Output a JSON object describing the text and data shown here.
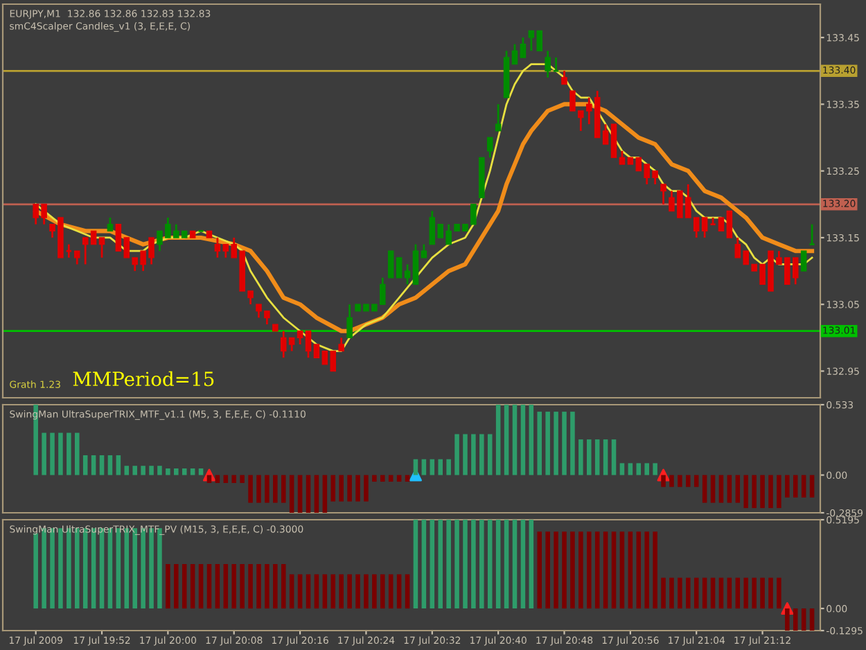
{
  "chart_data": [
    {
      "type": "candlestick",
      "title": "EURJPY,M1  132.86 132.86 132.83 132.83",
      "subtitle": "smC4Scalper Candles_v1 (3, E,E,E, C)",
      "annotations": [
        "Grath 1.23",
        "MMPeriod=15"
      ],
      "x": [
        "2009-07-17T19:44",
        "2009-07-17T19:45",
        "2009-07-17T19:46",
        "2009-07-17T19:47",
        "2009-07-17T19:48",
        "2009-07-17T19:49",
        "2009-07-17T19:50",
        "2009-07-17T19:51",
        "2009-07-17T19:52",
        "2009-07-17T19:53",
        "2009-07-17T19:54",
        "2009-07-17T19:55",
        "2009-07-17T19:56",
        "2009-07-17T19:57",
        "2009-07-17T19:58",
        "2009-07-17T19:59",
        "2009-07-17T20:00",
        "2009-07-17T20:01",
        "2009-07-17T20:02",
        "2009-07-17T20:03",
        "2009-07-17T20:04",
        "2009-07-17T20:05",
        "2009-07-17T20:06",
        "2009-07-17T20:07",
        "2009-07-17T20:08",
        "2009-07-17T20:09",
        "2009-07-17T20:10",
        "2009-07-17T20:11",
        "2009-07-17T20:12",
        "2009-07-17T20:13",
        "2009-07-17T20:14",
        "2009-07-17T20:15",
        "2009-07-17T20:16",
        "2009-07-17T20:17",
        "2009-07-17T20:18",
        "2009-07-17T20:19",
        "2009-07-17T20:20",
        "2009-07-17T20:21",
        "2009-07-17T20:22",
        "2009-07-17T20:23",
        "2009-07-17T20:24",
        "2009-07-17T20:25",
        "2009-07-17T20:26",
        "2009-07-17T20:27",
        "2009-07-17T20:28",
        "2009-07-17T20:29",
        "2009-07-17T20:30",
        "2009-07-17T20:31",
        "2009-07-17T20:32",
        "2009-07-17T20:33",
        "2009-07-17T20:34",
        "2009-07-17T20:35",
        "2009-07-17T20:36",
        "2009-07-17T20:37",
        "2009-07-17T20:38",
        "2009-07-17T20:39",
        "2009-07-17T20:40",
        "2009-07-17T20:41",
        "2009-07-17T20:42",
        "2009-07-17T20:43",
        "2009-07-17T20:44",
        "2009-07-17T20:45",
        "2009-07-17T20:46",
        "2009-07-17T20:47",
        "2009-07-17T20:48",
        "2009-07-17T20:49",
        "2009-07-17T20:50",
        "2009-07-17T20:51",
        "2009-07-17T20:52",
        "2009-07-17T20:53",
        "2009-07-17T20:54",
        "2009-07-17T20:55",
        "2009-07-17T20:56",
        "2009-07-17T20:57",
        "2009-07-17T20:58",
        "2009-07-17T20:59",
        "2009-07-17T21:00",
        "2009-07-17T21:01",
        "2009-07-17T21:02",
        "2009-07-17T21:03",
        "2009-07-17T21:04",
        "2009-07-17T21:05",
        "2009-07-17T21:06",
        "2009-07-17T21:07",
        "2009-07-17T21:08",
        "2009-07-17T21:09",
        "2009-07-17T21:10",
        "2009-07-17T21:11",
        "2009-07-17T21:12",
        "2009-07-17T21:13",
        "2009-07-17T21:14",
        "2009-07-17T21:15",
        "2009-07-17T21:16",
        "2009-07-17T21:17",
        "2009-07-17T21:18"
      ],
      "ohlc": [
        [
          133.2,
          133.2,
          133.17,
          133.18
        ],
        [
          133.2,
          133.2,
          133.17,
          133.18
        ],
        [
          133.17,
          133.17,
          133.15,
          133.16
        ],
        [
          133.18,
          133.18,
          133.12,
          133.12
        ],
        [
          133.13,
          133.14,
          133.12,
          133.13
        ],
        [
          133.13,
          133.13,
          133.11,
          133.12
        ],
        [
          133.15,
          133.15,
          133.11,
          133.14
        ],
        [
          133.16,
          133.16,
          133.14,
          133.14
        ],
        [
          133.15,
          133.15,
          133.12,
          133.14
        ],
        [
          133.16,
          133.18,
          133.16,
          133.17
        ],
        [
          133.17,
          133.17,
          133.13,
          133.13
        ],
        [
          133.15,
          133.15,
          133.12,
          133.12
        ],
        [
          133.12,
          133.12,
          133.1,
          133.11
        ],
        [
          133.13,
          133.13,
          133.1,
          133.11
        ],
        [
          133.15,
          133.15,
          133.11,
          133.12
        ],
        [
          133.14,
          133.16,
          133.13,
          133.16
        ],
        [
          133.15,
          133.18,
          133.15,
          133.17
        ],
        [
          133.15,
          133.17,
          133.15,
          133.16
        ],
        [
          133.15,
          133.16,
          133.15,
          133.16
        ],
        [
          133.16,
          133.16,
          133.15,
          133.15
        ],
        [
          133.16,
          133.16,
          133.16,
          133.16
        ],
        [
          133.16,
          133.16,
          133.15,
          133.15
        ],
        [
          133.14,
          133.15,
          133.12,
          133.13
        ],
        [
          133.14,
          133.14,
          133.12,
          133.13
        ],
        [
          133.14,
          133.15,
          133.12,
          133.12
        ],
        [
          133.13,
          133.13,
          133.07,
          133.07
        ],
        [
          133.07,
          133.07,
          133.05,
          133.06
        ],
        [
          133.05,
          133.05,
          133.03,
          133.04
        ],
        [
          133.04,
          133.04,
          133.02,
          133.03
        ],
        [
          133.02,
          133.02,
          133.01,
          133.01
        ],
        [
          133.0,
          133.01,
          132.97,
          132.98
        ],
        [
          133.0,
          133.0,
          132.98,
          132.99
        ],
        [
          133.01,
          133.01,
          132.99,
          133.0
        ],
        [
          133.01,
          133.01,
          132.97,
          132.98
        ],
        [
          132.99,
          132.99,
          132.97,
          132.97
        ],
        [
          132.98,
          132.98,
          132.96,
          132.96
        ],
        [
          132.98,
          132.98,
          132.95,
          132.95
        ],
        [
          132.99,
          133.0,
          132.98,
          132.98
        ],
        [
          133.0,
          133.05,
          133.0,
          133.03
        ],
        [
          133.04,
          133.05,
          133.04,
          133.05
        ],
        [
          133.04,
          133.05,
          133.04,
          133.05
        ],
        [
          133.04,
          133.05,
          133.04,
          133.05
        ],
        [
          133.05,
          133.09,
          133.05,
          133.08
        ],
        [
          133.09,
          133.13,
          133.09,
          133.13
        ],
        [
          133.09,
          133.12,
          133.09,
          133.12
        ],
        [
          133.09,
          133.11,
          133.08,
          133.1
        ],
        [
          133.08,
          133.14,
          133.08,
          133.13
        ],
        [
          133.12,
          133.14,
          133.12,
          133.13
        ],
        [
          133.14,
          133.19,
          133.14,
          133.18
        ],
        [
          133.15,
          133.17,
          133.15,
          133.17
        ],
        [
          133.14,
          133.17,
          133.14,
          133.16
        ],
        [
          133.16,
          133.17,
          133.16,
          133.17
        ],
        [
          133.16,
          133.17,
          133.16,
          133.17
        ],
        [
          133.17,
          133.2,
          133.17,
          133.2
        ],
        [
          133.21,
          133.27,
          133.21,
          133.27
        ],
        [
          133.28,
          133.3,
          133.27,
          133.3
        ],
        [
          133.31,
          133.35,
          133.31,
          133.32
        ],
        [
          133.36,
          133.43,
          133.36,
          133.42
        ],
        [
          133.41,
          133.44,
          133.41,
          133.43
        ],
        [
          133.42,
          133.45,
          133.42,
          133.44
        ],
        [
          133.45,
          133.46,
          133.43,
          133.46
        ],
        [
          133.43,
          133.46,
          133.43,
          133.46
        ],
        [
          133.4,
          133.43,
          133.39,
          133.42
        ],
        [
          133.4,
          133.42,
          133.4,
          133.4
        ],
        [
          133.39,
          133.4,
          133.38,
          133.38
        ],
        [
          133.37,
          133.37,
          133.34,
          133.34
        ],
        [
          133.34,
          133.34,
          133.31,
          133.33
        ],
        [
          133.35,
          133.36,
          133.32,
          133.34
        ],
        [
          133.36,
          133.37,
          133.3,
          133.3
        ],
        [
          133.31,
          133.32,
          133.29,
          133.29
        ],
        [
          133.32,
          133.32,
          133.27,
          133.27
        ],
        [
          133.27,
          133.28,
          133.26,
          133.26
        ],
        [
          133.27,
          133.27,
          133.26,
          133.26
        ],
        [
          133.27,
          133.27,
          133.25,
          133.25
        ],
        [
          133.26,
          133.26,
          133.23,
          133.24
        ],
        [
          133.25,
          133.25,
          133.23,
          133.24
        ],
        [
          133.23,
          133.23,
          133.2,
          133.22
        ],
        [
          133.21,
          133.22,
          133.19,
          133.19
        ],
        [
          133.22,
          133.22,
          133.18,
          133.18
        ],
        [
          133.21,
          133.23,
          133.18,
          133.18
        ],
        [
          133.18,
          133.18,
          133.15,
          133.16
        ],
        [
          133.18,
          133.18,
          133.15,
          133.16
        ],
        [
          133.17,
          133.18,
          133.17,
          133.17
        ],
        [
          133.18,
          133.18,
          133.16,
          133.16
        ],
        [
          133.19,
          133.19,
          133.15,
          133.15
        ],
        [
          133.14,
          133.15,
          133.12,
          133.12
        ],
        [
          133.13,
          133.13,
          133.11,
          133.11
        ],
        [
          133.11,
          133.11,
          133.1,
          133.1
        ],
        [
          133.11,
          133.11,
          133.08,
          133.08
        ],
        [
          133.13,
          133.13,
          133.07,
          133.07
        ],
        [
          133.12,
          133.13,
          133.11,
          133.11
        ],
        [
          133.12,
          133.12,
          133.08,
          133.08
        ],
        [
          133.12,
          133.12,
          133.08,
          133.09
        ],
        [
          133.1,
          133.13,
          133.1,
          133.13
        ],
        [
          133.14,
          133.17,
          133.14,
          133.14
        ]
      ],
      "colors": [
        "#e00000",
        "#e00000",
        "#e00000",
        "#e00000",
        "#e00000",
        "#e00000",
        "#e00000",
        "#e00000",
        "#e00000",
        "#008c00",
        "#e00000",
        "#e00000",
        "#e00000",
        "#e00000",
        "#e00000",
        "#008c00",
        "#008c00",
        "#008c00",
        "#008c00",
        "#e00000",
        "#008c00",
        "#e00000",
        "#e00000",
        "#e00000",
        "#e00000",
        "#e00000",
        "#e00000",
        "#e00000",
        "#e00000",
        "#e00000",
        "#e00000",
        "#e00000",
        "#e00000",
        "#e00000",
        "#e00000",
        "#e00000",
        "#e00000",
        "#e00000",
        "#008c00",
        "#008c00",
        "#008c00",
        "#008c00",
        "#008c00",
        "#008c00",
        "#008c00",
        "#008c00",
        "#008c00",
        "#008c00",
        "#008c00",
        "#008c00",
        "#008c00",
        "#008c00",
        "#008c00",
        "#008c00",
        "#008c00",
        "#008c00",
        "#008c00",
        "#008c00",
        "#008c00",
        "#008c00",
        "#008c00",
        "#008c00",
        "#008c00",
        "#008c00",
        "#e00000",
        "#e00000",
        "#e00000",
        "#e00000",
        "#e00000",
        "#e00000",
        "#e00000",
        "#e00000",
        "#e00000",
        "#e00000",
        "#e00000",
        "#e00000",
        "#e00000",
        "#e00000",
        "#e00000",
        "#e00000",
        "#e00000",
        "#e00000",
        "#e00000",
        "#e00000",
        "#e00000",
        "#e00000",
        "#e00000",
        "#e00000",
        "#e00000",
        "#e00000",
        "#e00000",
        "#e00000",
        "#e00000",
        "#008c00",
        "#008c00"
      ],
      "series": [
        {
          "type": "line",
          "color": "#f08c1a",
          "x": [
            "2009-07-17T19:44",
            "2009-07-17T19:47",
            "2009-07-17T19:50",
            "2009-07-17T19:53",
            "2009-07-17T19:57",
            "2009-07-17T20:00",
            "2009-07-17T20:04",
            "2009-07-17T20:08",
            "2009-07-17T20:10",
            "2009-07-17T20:12",
            "2009-07-17T20:14",
            "2009-07-17T20:16",
            "2009-07-17T20:18",
            "2009-07-17T20:21",
            "2009-07-17T20:22",
            "2009-07-17T20:24",
            "2009-07-17T20:26",
            "2009-07-17T20:28",
            "2009-07-17T20:30",
            "2009-07-17T20:32",
            "2009-07-17T20:34",
            "2009-07-17T20:36",
            "2009-07-17T20:37",
            "2009-07-17T20:38",
            "2009-07-17T20:40",
            "2009-07-17T20:41",
            "2009-07-17T20:42",
            "2009-07-17T20:43",
            "2009-07-17T20:44",
            "2009-07-17T20:46",
            "2009-07-17T20:48",
            "2009-07-17T20:49",
            "2009-07-17T20:51",
            "2009-07-17T20:53",
            "2009-07-17T20:55",
            "2009-07-17T20:57",
            "2009-07-17T20:59",
            "2009-07-17T21:01",
            "2009-07-17T21:03",
            "2009-07-17T21:05",
            "2009-07-17T21:07",
            "2009-07-17T21:08",
            "2009-07-17T21:10",
            "2009-07-17T21:12",
            "2009-07-17T21:14",
            "2009-07-17T21:16",
            "2009-07-17T21:18"
          ],
          "values": [
            133.19,
            133.17,
            133.16,
            133.16,
            133.14,
            133.15,
            133.15,
            133.14,
            133.13,
            133.1,
            133.06,
            133.05,
            133.03,
            133.01,
            133.01,
            133.02,
            133.03,
            133.05,
            133.06,
            133.08,
            133.1,
            133.11,
            133.13,
            133.15,
            133.19,
            133.23,
            133.26,
            133.29,
            133.31,
            133.34,
            133.35,
            133.35,
            133.35,
            133.34,
            133.32,
            133.3,
            133.29,
            133.26,
            133.25,
            133.22,
            133.21,
            133.2,
            133.18,
            133.15,
            133.14,
            133.13,
            133.13
          ]
        },
        {
          "type": "line",
          "color": "#e8e040",
          "x": [
            "2009-07-17T19:44",
            "2009-07-17T19:45",
            "2009-07-17T19:47",
            "2009-07-17T19:49",
            "2009-07-17T19:51",
            "2009-07-17T19:53",
            "2009-07-17T19:55",
            "2009-07-17T19:57",
            "2009-07-17T19:58",
            "2009-07-17T20:00",
            "2009-07-17T20:02",
            "2009-07-17T20:04",
            "2009-07-17T20:06",
            "2009-07-17T20:08",
            "2009-07-17T20:09",
            "2009-07-17T20:10",
            "2009-07-17T20:12",
            "2009-07-17T20:14",
            "2009-07-17T20:16",
            "2009-07-17T20:18",
            "2009-07-17T20:20",
            "2009-07-17T20:21",
            "2009-07-17T20:22",
            "2009-07-17T20:24",
            "2009-07-17T20:26",
            "2009-07-17T20:28",
            "2009-07-17T20:30",
            "2009-07-17T20:32",
            "2009-07-17T20:34",
            "2009-07-17T20:36",
            "2009-07-17T20:37",
            "2009-07-17T20:38",
            "2009-07-17T20:39",
            "2009-07-17T20:40",
            "2009-07-17T20:41",
            "2009-07-17T20:42",
            "2009-07-17T20:43",
            "2009-07-17T20:44",
            "2009-07-17T20:45",
            "2009-07-17T20:46",
            "2009-07-17T20:47",
            "2009-07-17T20:48",
            "2009-07-17T20:49",
            "2009-07-17T20:50",
            "2009-07-17T20:51",
            "2009-07-17T20:52",
            "2009-07-17T20:53",
            "2009-07-17T20:54",
            "2009-07-17T20:55",
            "2009-07-17T20:56",
            "2009-07-17T20:57",
            "2009-07-17T20:58",
            "2009-07-17T20:59",
            "2009-07-17T21:00",
            "2009-07-17T21:01",
            "2009-07-17T21:02",
            "2009-07-17T21:03",
            "2009-07-17T21:04",
            "2009-07-17T21:05",
            "2009-07-17T21:06",
            "2009-07-17T21:07",
            "2009-07-17T21:08",
            "2009-07-17T21:09",
            "2009-07-17T21:10",
            "2009-07-17T21:11",
            "2009-07-17T21:12",
            "2009-07-17T21:13",
            "2009-07-17T21:14",
            "2009-07-17T21:15",
            "2009-07-17T21:16",
            "2009-07-17T21:17",
            "2009-07-17T21:18"
          ],
          "values": [
            133.2,
            133.19,
            133.17,
            133.16,
            133.15,
            133.15,
            133.13,
            133.13,
            133.14,
            133.15,
            133.15,
            133.16,
            133.15,
            133.14,
            133.13,
            133.1,
            133.06,
            133.03,
            133.01,
            132.99,
            132.98,
            132.98,
            133.0,
            133.02,
            133.03,
            133.06,
            133.09,
            133.12,
            133.14,
            133.15,
            133.17,
            133.21,
            133.25,
            133.3,
            133.35,
            133.38,
            133.4,
            133.41,
            133.41,
            133.41,
            133.4,
            133.39,
            133.37,
            133.36,
            133.36,
            133.34,
            133.32,
            133.3,
            133.28,
            133.27,
            133.27,
            133.26,
            133.25,
            133.23,
            133.22,
            133.22,
            133.21,
            133.19,
            133.18,
            133.18,
            133.18,
            133.17,
            133.15,
            133.14,
            133.12,
            133.11,
            133.12,
            133.11,
            133.11,
            133.11,
            133.11,
            133.12
          ]
        }
      ],
      "ref_lines": [
        {
          "axis": "y",
          "value": 133.4,
          "label": "133.40",
          "color": "#b8a030"
        },
        {
          "axis": "y",
          "value": 133.2,
          "label": "133.20",
          "color": "#c06050"
        },
        {
          "axis": "y",
          "value": 133.01,
          "label": "133.01",
          "color": "#00c000"
        }
      ],
      "xlim": [
        "2009-07-17T19:40",
        "2009-07-17T21:19"
      ],
      "ylim": [
        132.91,
        133.5
      ],
      "yticks": [
        133.45,
        133.35,
        133.25,
        133.15,
        133.05,
        132.95
      ],
      "tick_labels": "y",
      "grid": false,
      "legend": false
    },
    {
      "type": "bar",
      "title": "SwingMan UltraSuperTRIX_MTF_v1.1 (M5, 3, E,E,E, C) -0.1110",
      "x": [
        "2009-07-17T19:44",
        "2009-07-17T19:45",
        "2009-07-17T19:46",
        "2009-07-17T19:47",
        "2009-07-17T19:48",
        "2009-07-17T19:49",
        "2009-07-17T19:50",
        "2009-07-17T19:51",
        "2009-07-17T19:52",
        "2009-07-17T19:53",
        "2009-07-17T19:54",
        "2009-07-17T19:55",
        "2009-07-17T19:56",
        "2009-07-17T19:57",
        "2009-07-17T19:58",
        "2009-07-17T19:59",
        "2009-07-17T20:00",
        "2009-07-17T20:01",
        "2009-07-17T20:02",
        "2009-07-17T20:03",
        "2009-07-17T20:04",
        "2009-07-17T20:05",
        "2009-07-17T20:06",
        "2009-07-17T20:07",
        "2009-07-17T20:08",
        "2009-07-17T20:09",
        "2009-07-17T20:10",
        "2009-07-17T20:11",
        "2009-07-17T20:12",
        "2009-07-17T20:13",
        "2009-07-17T20:14",
        "2009-07-17T20:15",
        "2009-07-17T20:16",
        "2009-07-17T20:17",
        "2009-07-17T20:18",
        "2009-07-17T20:19",
        "2009-07-17T20:20",
        "2009-07-17T20:21",
        "2009-07-17T20:22",
        "2009-07-17T20:23",
        "2009-07-17T20:24",
        "2009-07-17T20:25",
        "2009-07-17T20:26",
        "2009-07-17T20:27",
        "2009-07-17T20:28",
        "2009-07-17T20:29",
        "2009-07-17T20:30",
        "2009-07-17T20:31",
        "2009-07-17T20:32",
        "2009-07-17T20:33",
        "2009-07-17T20:34",
        "2009-07-17T20:35",
        "2009-07-17T20:36",
        "2009-07-17T20:37",
        "2009-07-17T20:38",
        "2009-07-17T20:39",
        "2009-07-17T20:40",
        "2009-07-17T20:41",
        "2009-07-17T20:42",
        "2009-07-17T20:43",
        "2009-07-17T20:44",
        "2009-07-17T20:45",
        "2009-07-17T20:46",
        "2009-07-17T20:47",
        "2009-07-17T20:48",
        "2009-07-17T20:49",
        "2009-07-17T20:50",
        "2009-07-17T20:51",
        "2009-07-17T20:52",
        "2009-07-17T20:53",
        "2009-07-17T20:54",
        "2009-07-17T20:55",
        "2009-07-17T20:56",
        "2009-07-17T20:57",
        "2009-07-17T20:58",
        "2009-07-17T20:59",
        "2009-07-17T21:00",
        "2009-07-17T21:01",
        "2009-07-17T21:02",
        "2009-07-17T21:03",
        "2009-07-17T21:04",
        "2009-07-17T21:05",
        "2009-07-17T21:06",
        "2009-07-17T21:07",
        "2009-07-17T21:08",
        "2009-07-17T21:09",
        "2009-07-17T21:10",
        "2009-07-17T21:11",
        "2009-07-17T21:12",
        "2009-07-17T21:13",
        "2009-07-17T21:14",
        "2009-07-17T21:15",
        "2009-07-17T21:16",
        "2009-07-17T21:17",
        "2009-07-17T21:18"
      ],
      "series": [
        {
          "color": "#2e9c6a",
          "values": [
            0.533,
            0.32,
            0.32,
            0.32,
            0.32,
            0.32,
            0.15,
            0.15,
            0.15,
            0.15,
            0.15,
            0.07,
            0.07,
            0.07,
            0.07,
            0.07,
            0.05,
            0.05,
            0.05,
            0.05,
            0.05,
            null,
            null,
            null,
            null,
            null,
            null,
            null,
            null,
            null,
            null,
            null,
            null,
            null,
            null,
            null,
            null,
            null,
            null,
            null,
            null,
            null,
            null,
            null,
            null,
            null,
            0.12,
            0.12,
            0.12,
            0.12,
            0.12,
            0.31,
            0.31,
            0.31,
            0.31,
            0.31,
            0.533,
            0.533,
            0.533,
            0.533,
            0.533,
            0.48,
            0.48,
            0.48,
            0.48,
            0.48,
            0.27,
            0.27,
            0.27,
            0.27,
            0.27,
            0.09,
            0.09,
            0.09,
            0.09,
            0.09,
            null,
            null,
            null,
            null,
            null,
            null,
            null,
            null,
            null,
            null,
            null,
            null,
            null,
            null,
            null,
            null,
            null,
            null,
            null
          ]
        },
        {
          "color": "#7a0000",
          "values": [
            null,
            null,
            null,
            null,
            null,
            null,
            null,
            null,
            null,
            null,
            null,
            null,
            null,
            null,
            null,
            null,
            null,
            null,
            null,
            null,
            null,
            -0.06,
            -0.06,
            -0.06,
            -0.06,
            -0.06,
            -0.21,
            -0.21,
            -0.21,
            -0.21,
            -0.21,
            -0.2859,
            -0.2859,
            -0.2859,
            -0.2859,
            -0.2859,
            -0.2,
            -0.2,
            -0.2,
            -0.2,
            -0.2,
            -0.05,
            -0.05,
            -0.05,
            -0.05,
            -0.05,
            null,
            null,
            null,
            null,
            null,
            null,
            null,
            null,
            null,
            null,
            null,
            null,
            null,
            null,
            null,
            null,
            null,
            null,
            null,
            null,
            null,
            null,
            null,
            null,
            null,
            null,
            null,
            null,
            null,
            null,
            -0.09,
            -0.09,
            -0.09,
            -0.09,
            -0.09,
            -0.21,
            -0.21,
            -0.21,
            -0.21,
            -0.21,
            -0.25,
            -0.25,
            -0.25,
            -0.25,
            -0.25,
            -0.17,
            -0.17,
            -0.17,
            -0.17
          ]
        },
        {
          "type": "scatter",
          "marker": "triangle",
          "color": "#ff2020",
          "x": [
            "2009-07-17T20:05",
            "2009-07-17T21:00"
          ],
          "values": [
            0,
            0
          ]
        },
        {
          "type": "scatter",
          "marker": "triangle",
          "color": "#20c0ff",
          "x": [
            "2009-07-17T20:30"
          ],
          "values": [
            0
          ]
        }
      ],
      "xlim": [
        "2009-07-17T19:40",
        "2009-07-17T21:19"
      ],
      "ylim": [
        -0.2859,
        0.533
      ],
      "yticks": [
        0.533,
        {
          "value": 0,
          "label": "0.00"
        },
        -0.2859
      ],
      "tick_labels": "y",
      "grid": false,
      "legend": false
    },
    {
      "type": "bar",
      "title": "SwingMan UltraSuperTRIX_MTF_PV (M15, 3, E,E,E, C) -0.3000",
      "x": [
        "2009-07-17T19:44",
        "2009-07-17T19:45",
        "2009-07-17T19:46",
        "2009-07-17T19:47",
        "2009-07-17T19:48",
        "2009-07-17T19:49",
        "2009-07-17T19:50",
        "2009-07-17T19:51",
        "2009-07-17T19:52",
        "2009-07-17T19:53",
        "2009-07-17T19:54",
        "2009-07-17T19:55",
        "2009-07-17T19:56",
        "2009-07-17T19:57",
        "2009-07-17T19:58",
        "2009-07-17T19:59",
        "2009-07-17T20:00",
        "2009-07-17T20:01",
        "2009-07-17T20:02",
        "2009-07-17T20:03",
        "2009-07-17T20:04",
        "2009-07-17T20:05",
        "2009-07-17T20:06",
        "2009-07-17T20:07",
        "2009-07-17T20:08",
        "2009-07-17T20:09",
        "2009-07-17T20:10",
        "2009-07-17T20:11",
        "2009-07-17T20:12",
        "2009-07-17T20:13",
        "2009-07-17T20:14",
        "2009-07-17T20:15",
        "2009-07-17T20:16",
        "2009-07-17T20:17",
        "2009-07-17T20:18",
        "2009-07-17T20:19",
        "2009-07-17T20:20",
        "2009-07-17T20:21",
        "2009-07-17T20:22",
        "2009-07-17T20:23",
        "2009-07-17T20:24",
        "2009-07-17T20:25",
        "2009-07-17T20:26",
        "2009-07-17T20:27",
        "2009-07-17T20:28",
        "2009-07-17T20:29",
        "2009-07-17T20:30",
        "2009-07-17T20:31",
        "2009-07-17T20:32",
        "2009-07-17T20:33",
        "2009-07-17T20:34",
        "2009-07-17T20:35",
        "2009-07-17T20:36",
        "2009-07-17T20:37",
        "2009-07-17T20:38",
        "2009-07-17T20:39",
        "2009-07-17T20:40",
        "2009-07-17T20:41",
        "2009-07-17T20:42",
        "2009-07-17T20:43",
        "2009-07-17T20:44",
        "2009-07-17T20:45",
        "2009-07-17T20:46",
        "2009-07-17T20:47",
        "2009-07-17T20:48",
        "2009-07-17T20:49",
        "2009-07-17T20:50",
        "2009-07-17T20:51",
        "2009-07-17T20:52",
        "2009-07-17T20:53",
        "2009-07-17T20:54",
        "2009-07-17T20:55",
        "2009-07-17T20:56",
        "2009-07-17T20:57",
        "2009-07-17T20:58",
        "2009-07-17T20:59",
        "2009-07-17T21:00",
        "2009-07-17T21:01",
        "2009-07-17T21:02",
        "2009-07-17T21:03",
        "2009-07-17T21:04",
        "2009-07-17T21:05",
        "2009-07-17T21:06",
        "2009-07-17T21:07",
        "2009-07-17T21:08",
        "2009-07-17T21:09",
        "2009-07-17T21:10",
        "2009-07-17T21:11",
        "2009-07-17T21:12",
        "2009-07-17T21:13",
        "2009-07-17T21:14",
        "2009-07-17T21:15",
        "2009-07-17T21:16",
        "2009-07-17T21:17",
        "2009-07-17T21:18"
      ],
      "series": [
        {
          "color": "#2e9c6a",
          "values": [
            0.44,
            0.47,
            0.47,
            0.47,
            0.47,
            0.47,
            0.47,
            0.47,
            0.47,
            0.47,
            0.47,
            0.47,
            0.47,
            0.47,
            0.47,
            0.47,
            null,
            null,
            null,
            null,
            null,
            null,
            null,
            null,
            null,
            null,
            null,
            null,
            null,
            null,
            null,
            null,
            null,
            null,
            null,
            null,
            null,
            null,
            null,
            null,
            null,
            null,
            null,
            null,
            null,
            null,
            0.5195,
            0.5195,
            0.5195,
            0.5195,
            0.5195,
            0.5195,
            0.5195,
            0.5195,
            0.5195,
            0.5195,
            0.5195,
            0.5195,
            0.5195,
            0.5195,
            0.5195,
            null,
            null,
            null,
            null,
            null,
            null,
            null,
            null,
            null,
            null,
            null,
            null,
            null,
            null,
            null,
            null,
            null,
            null,
            null,
            null,
            null,
            null,
            null,
            null,
            null,
            null,
            null,
            null,
            null,
            null,
            null,
            null,
            null,
            null
          ]
        },
        {
          "color": "#7a0000",
          "values": [
            null,
            null,
            null,
            null,
            null,
            null,
            null,
            null,
            null,
            null,
            null,
            null,
            null,
            null,
            null,
            null,
            0.26,
            0.26,
            0.26,
            0.26,
            0.26,
            0.26,
            0.26,
            0.26,
            0.26,
            0.26,
            0.26,
            0.26,
            0.26,
            0.26,
            0.26,
            0.2,
            0.2,
            0.2,
            0.2,
            0.2,
            0.2,
            0.2,
            0.2,
            0.2,
            0.2,
            0.2,
            0.2,
            0.2,
            0.2,
            0.2,
            null,
            null,
            null,
            null,
            null,
            null,
            null,
            null,
            null,
            null,
            null,
            null,
            null,
            null,
            null,
            0.45,
            0.45,
            0.45,
            0.45,
            0.45,
            0.45,
            0.45,
            0.45,
            0.45,
            0.45,
            0.45,
            0.45,
            0.45,
            0.45,
            0.45,
            0.18,
            0.18,
            0.18,
            0.18,
            0.18,
            0.18,
            0.18,
            0.18,
            0.18,
            0.18,
            0.18,
            0.18,
            0.18,
            0.18,
            0.18,
            -0.1295,
            -0.1295,
            -0.1295,
            -0.1295
          ]
        },
        {
          "type": "scatter",
          "marker": "triangle",
          "color": "#ff2020",
          "x": [
            "2009-07-17T21:15"
          ],
          "values": [
            0
          ]
        }
      ],
      "xlim": [
        "2009-07-17T19:40",
        "2009-07-17T21:19"
      ],
      "ylim": [
        -0.1295,
        0.5195
      ],
      "yticks": [
        0.5195,
        {
          "value": 0,
          "label": "0.00"
        },
        -0.1295
      ],
      "xticks": [
        {
          "value": "2009-07-17T19:44",
          "label": "17 Jul 2009"
        },
        {
          "value": "2009-07-17T19:52",
          "label": "17 Jul 19:52"
        },
        {
          "value": "2009-07-17T20:00",
          "label": "17 Jul 20:00"
        },
        {
          "value": "2009-07-17T20:08",
          "label": "17 Jul 20:08"
        },
        {
          "value": "2009-07-17T20:16",
          "label": "17 Jul 20:16"
        },
        {
          "value": "2009-07-17T20:24",
          "label": "17 Jul 20:24"
        },
        {
          "value": "2009-07-17T20:32",
          "label": "17 Jul 20:32"
        },
        {
          "value": "2009-07-17T20:40",
          "label": "17 Jul 20:40"
        },
        {
          "value": "2009-07-17T20:48",
          "label": "17 Jul 20:48"
        },
        {
          "value": "2009-07-17T20:56",
          "label": "17 Jul 20:56"
        },
        {
          "value": "2009-07-17T21:04",
          "label": "17 Jul 21:04"
        },
        {
          "value": "2009-07-17T21:12",
          "label": "17 Jul 21:12"
        }
      ],
      "grid": false,
      "legend": false
    }
  ]
}
